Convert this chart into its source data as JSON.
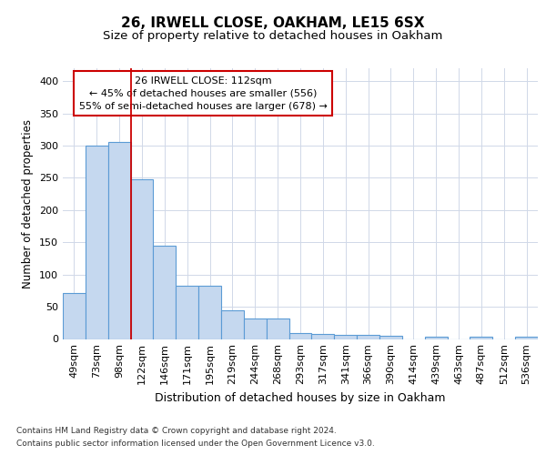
{
  "title1": "26, IRWELL CLOSE, OAKHAM, LE15 6SX",
  "title2": "Size of property relative to detached houses in Oakham",
  "xlabel": "Distribution of detached houses by size in Oakham",
  "ylabel": "Number of detached properties",
  "categories": [
    "49sqm",
    "73sqm",
    "98sqm",
    "122sqm",
    "146sqm",
    "171sqm",
    "195sqm",
    "219sqm",
    "244sqm",
    "268sqm",
    "293sqm",
    "317sqm",
    "341sqm",
    "366sqm",
    "390sqm",
    "414sqm",
    "439sqm",
    "463sqm",
    "487sqm",
    "512sqm",
    "536sqm"
  ],
  "values": [
    72,
    300,
    305,
    248,
    145,
    83,
    83,
    45,
    32,
    32,
    9,
    8,
    6,
    6,
    5,
    0,
    4,
    0,
    3,
    0,
    3
  ],
  "bar_color": "#c5d8ef",
  "bar_edge_color": "#5b9bd5",
  "vline_x": 2.5,
  "vline_color": "#cc0000",
  "annotation_line1": "26 IRWELL CLOSE: 112sqm",
  "annotation_line2": "← 45% of detached houses are smaller (556)",
  "annotation_line3": "55% of semi-detached houses are larger (678) →",
  "annotation_box_facecolor": "white",
  "annotation_box_edgecolor": "#cc0000",
  "ylim": [
    0,
    420
  ],
  "yticks": [
    0,
    50,
    100,
    150,
    200,
    250,
    300,
    350,
    400
  ],
  "footer_line1": "Contains HM Land Registry data © Crown copyright and database right 2024.",
  "footer_line2": "Contains public sector information licensed under the Open Government Licence v3.0.",
  "bg_color": "#ffffff",
  "plot_bg_color": "#ffffff",
  "grid_color": "#d0d8e8",
  "title1_fontsize": 11,
  "title2_fontsize": 9.5,
  "xlabel_fontsize": 9,
  "ylabel_fontsize": 8.5,
  "tick_fontsize": 8,
  "footer_fontsize": 6.5
}
